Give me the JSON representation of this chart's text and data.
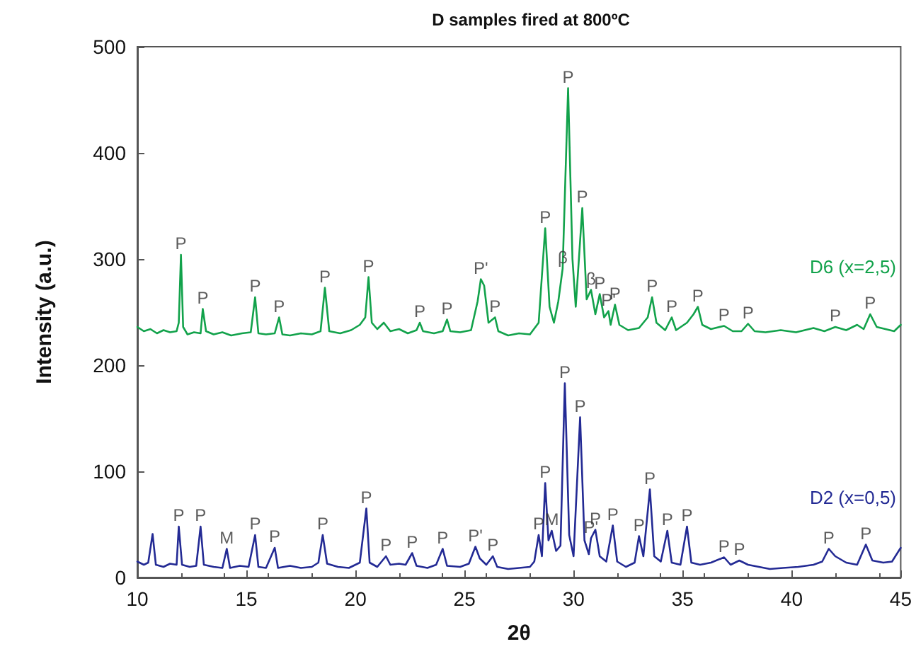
{
  "chart_data": {
    "type": "line",
    "title": "D samples fired at 800ºC",
    "xlabel": "2θ",
    "ylabel": "Intensity (a.u.)",
    "xlim": [
      10,
      45
    ],
    "xticks": [
      10,
      15,
      20,
      25,
      30,
      35,
      40,
      45
    ],
    "ylim": [
      0,
      500
    ],
    "yticks": [
      0,
      100,
      200,
      300,
      400,
      500
    ],
    "grid": false,
    "legend": false,
    "marker": "none",
    "line_style": "solid",
    "series": [
      {
        "name": "D6 (x=2,5)",
        "color": "#12a24b",
        "x": [
          10,
          10.3,
          10.6,
          10.9,
          11.2,
          11.5,
          11.8,
          11.9,
          12.0,
          12.1,
          12.3,
          12.6,
          12.9,
          13.0,
          13.15,
          13.5,
          13.9,
          14.3,
          14.8,
          15.2,
          15.4,
          15.55,
          15.9,
          16.3,
          16.5,
          16.65,
          17.0,
          17.5,
          18.0,
          18.4,
          18.6,
          18.8,
          19.3,
          19.8,
          20.2,
          20.45,
          20.6,
          20.75,
          21.0,
          21.3,
          21.6,
          22.0,
          22.4,
          22.8,
          22.95,
          23.1,
          23.6,
          24.0,
          24.2,
          24.35,
          24.8,
          25.3,
          25.6,
          25.75,
          25.9,
          26.1,
          26.4,
          26.55,
          27.0,
          27.5,
          28.0,
          28.4,
          28.7,
          28.9,
          29.1,
          29.3,
          29.5,
          29.75,
          29.95,
          30.1,
          30.4,
          30.6,
          30.8,
          31.0,
          31.2,
          31.4,
          31.6,
          31.7,
          31.9,
          32.1,
          32.5,
          33.0,
          33.4,
          33.6,
          33.8,
          34.2,
          34.5,
          34.7,
          35.2,
          35.5,
          35.7,
          35.9,
          36.3,
          36.9,
          37.3,
          37.7,
          38.0,
          38.3,
          38.8,
          39.5,
          40.2,
          41.0,
          41.5,
          42.0,
          42.5,
          43.0,
          43.3,
          43.6,
          43.9,
          44.3,
          44.7,
          45
        ],
        "values": [
          236,
          232,
          234,
          230,
          233,
          231,
          232,
          240,
          304,
          236,
          229,
          231,
          230,
          253,
          232,
          229,
          231,
          228,
          230,
          231,
          264,
          230,
          229,
          230,
          245,
          229,
          228,
          230,
          229,
          232,
          273,
          232,
          230,
          233,
          238,
          245,
          283,
          240,
          234,
          240,
          232,
          234,
          230,
          233,
          240,
          232,
          230,
          232,
          243,
          232,
          231,
          233,
          260,
          281,
          275,
          240,
          245,
          232,
          228,
          230,
          229,
          240,
          329,
          255,
          240,
          260,
          291,
          461,
          300,
          255,
          348,
          262,
          271,
          248,
          267,
          245,
          251,
          238,
          257,
          238,
          233,
          235,
          245,
          264,
          240,
          233,
          245,
          233,
          240,
          248,
          255,
          238,
          234,
          237,
          232,
          232,
          239,
          232,
          231,
          233,
          231,
          235,
          232,
          236,
          233,
          238,
          234,
          248,
          236,
          234,
          232,
          238
        ]
      },
      {
        "name": "D2 (x=0,5)",
        "color": "#232a94",
        "x": [
          10,
          10.3,
          10.5,
          10.7,
          10.85,
          11.2,
          11.5,
          11.8,
          11.9,
          12.05,
          12.4,
          12.7,
          12.9,
          13.05,
          13.5,
          13.9,
          14.1,
          14.25,
          14.7,
          15.1,
          15.4,
          15.55,
          15.9,
          16.3,
          16.45,
          17.0,
          17.5,
          18.0,
          18.3,
          18.5,
          18.7,
          19.2,
          19.7,
          20.2,
          20.5,
          20.65,
          21.0,
          21.4,
          21.6,
          22.0,
          22.3,
          22.6,
          22.8,
          23.3,
          23.7,
          24.0,
          24.2,
          24.8,
          25.2,
          25.5,
          25.7,
          26.0,
          26.3,
          26.5,
          27.0,
          27.5,
          28.0,
          28.2,
          28.4,
          28.55,
          28.7,
          28.85,
          29.0,
          29.2,
          29.4,
          29.6,
          29.8,
          30.0,
          30.3,
          30.5,
          30.7,
          30.8,
          31.0,
          31.2,
          31.5,
          31.8,
          32.0,
          32.4,
          32.8,
          33.0,
          33.2,
          33.5,
          33.7,
          34.0,
          34.3,
          34.5,
          34.9,
          35.2,
          35.4,
          35.8,
          36.3,
          36.9,
          37.2,
          37.6,
          38.0,
          38.5,
          39.0,
          39.6,
          40.3,
          41.0,
          41.4,
          41.7,
          42.0,
          42.5,
          43.0,
          43.4,
          43.7,
          44.2,
          44.6,
          45
        ],
        "values": [
          15,
          12,
          14,
          41,
          12,
          10,
          13,
          12,
          48,
          12,
          10,
          11,
          48,
          12,
          10,
          9,
          27,
          9,
          11,
          10,
          40,
          10,
          9,
          28,
          9,
          11,
          9,
          10,
          14,
          40,
          13,
          10,
          9,
          14,
          65,
          14,
          10,
          20,
          12,
          13,
          12,
          23,
          11,
          9,
          12,
          27,
          11,
          10,
          13,
          29,
          18,
          12,
          20,
          10,
          8,
          9,
          10,
          15,
          40,
          20,
          89,
          35,
          44,
          25,
          30,
          183,
          40,
          20,
          151,
          35,
          22,
          37,
          45,
          20,
          15,
          49,
          15,
          10,
          14,
          39,
          20,
          83,
          20,
          15,
          44,
          14,
          12,
          48,
          14,
          12,
          14,
          19,
          12,
          16,
          12,
          10,
          8,
          9,
          10,
          12,
          15,
          27,
          20,
          14,
          12,
          31,
          16,
          14,
          15,
          28
        ]
      }
    ],
    "annotations": [
      {
        "text": "P",
        "x": 12.0,
        "y": 304
      },
      {
        "text": "P",
        "x": 13.0,
        "y": 253
      },
      {
        "text": "P",
        "x": 15.4,
        "y": 264
      },
      {
        "text": "P",
        "x": 16.5,
        "y": 245
      },
      {
        "text": "P",
        "x": 18.6,
        "y": 273
      },
      {
        "text": "P",
        "x": 20.6,
        "y": 283
      },
      {
        "text": "P",
        "x": 22.95,
        "y": 240
      },
      {
        "text": "P",
        "x": 24.2,
        "y": 243
      },
      {
        "text": "P'",
        "x": 25.75,
        "y": 281
      },
      {
        "text": "P",
        "x": 26.4,
        "y": 245
      },
      {
        "text": "P",
        "x": 28.7,
        "y": 329
      },
      {
        "text": "β",
        "x": 29.5,
        "y": 291
      },
      {
        "text": "P",
        "x": 29.75,
        "y": 461
      },
      {
        "text": "P",
        "x": 30.4,
        "y": 348
      },
      {
        "text": "β",
        "x": 30.8,
        "y": 271
      },
      {
        "text": "P",
        "x": 31.2,
        "y": 267
      },
      {
        "text": "P'",
        "x": 31.6,
        "y": 251
      },
      {
        "text": "P",
        "x": 31.9,
        "y": 257
      },
      {
        "text": "P",
        "x": 33.6,
        "y": 264
      },
      {
        "text": "P",
        "x": 34.5,
        "y": 245
      },
      {
        "text": "P",
        "x": 35.7,
        "y": 255
      },
      {
        "text": "P",
        "x": 36.9,
        "y": 237
      },
      {
        "text": "P",
        "x": 38.0,
        "y": 239
      },
      {
        "text": "P",
        "x": 42.0,
        "y": 236
      },
      {
        "text": "P",
        "x": 43.6,
        "y": 248
      },
      {
        "text": "P",
        "x": 11.9,
        "y": 48
      },
      {
        "text": "P",
        "x": 12.9,
        "y": 48
      },
      {
        "text": "M",
        "x": 14.1,
        "y": 27
      },
      {
        "text": "P",
        "x": 15.4,
        "y": 40
      },
      {
        "text": "P",
        "x": 16.3,
        "y": 28
      },
      {
        "text": "P",
        "x": 18.5,
        "y": 40
      },
      {
        "text": "P",
        "x": 20.5,
        "y": 65
      },
      {
        "text": "P",
        "x": 21.4,
        "y": 20
      },
      {
        "text": "P",
        "x": 22.6,
        "y": 23
      },
      {
        "text": "P",
        "x": 24.0,
        "y": 27
      },
      {
        "text": "P'",
        "x": 25.5,
        "y": 29
      },
      {
        "text": "P",
        "x": 26.3,
        "y": 20
      },
      {
        "text": "P",
        "x": 28.4,
        "y": 40
      },
      {
        "text": "P",
        "x": 28.7,
        "y": 89
      },
      {
        "text": "M",
        "x": 29.0,
        "y": 44
      },
      {
        "text": "P",
        "x": 29.6,
        "y": 183
      },
      {
        "text": "P",
        "x": 30.3,
        "y": 151
      },
      {
        "text": "P'",
        "x": 30.8,
        "y": 37
      },
      {
        "text": "P",
        "x": 31.0,
        "y": 45
      },
      {
        "text": "P",
        "x": 31.8,
        "y": 49
      },
      {
        "text": "P",
        "x": 33.0,
        "y": 39
      },
      {
        "text": "P",
        "x": 33.5,
        "y": 83
      },
      {
        "text": "P",
        "x": 34.3,
        "y": 44
      },
      {
        "text": "P",
        "x": 35.2,
        "y": 48
      },
      {
        "text": "P",
        "x": 36.9,
        "y": 19
      },
      {
        "text": "P",
        "x": 37.6,
        "y": 16
      },
      {
        "text": "P",
        "x": 41.7,
        "y": 27
      },
      {
        "text": "P",
        "x": 43.4,
        "y": 31
      }
    ]
  }
}
